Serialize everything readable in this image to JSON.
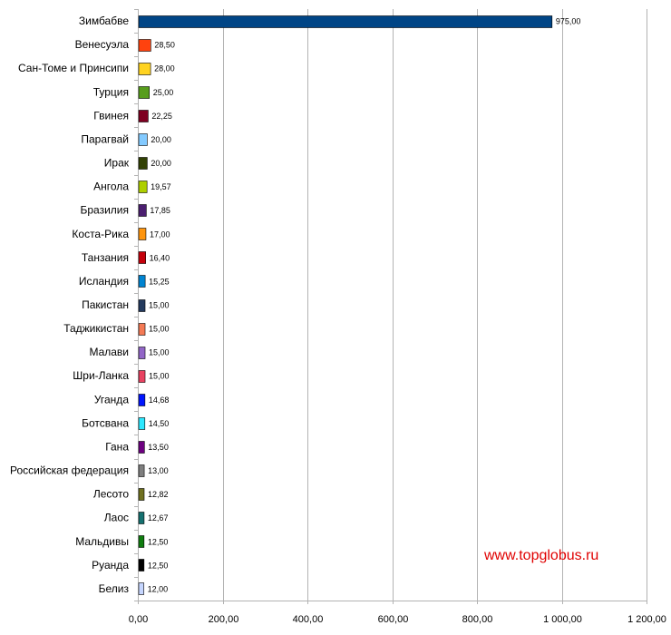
{
  "chart_data": {
    "type": "bar",
    "orientation": "horizontal",
    "categories": [
      "Зимбабве",
      "Венесуэла",
      "Сан-Томе и Принсипи",
      "Турция",
      "Гвинея",
      "Парагвай",
      "Ирак",
      "Ангола",
      "Бразилия",
      "Коста-Рика",
      "Танзания",
      "Исландия",
      "Пакистан",
      "Таджикистан",
      "Малави",
      "Шри-Ланка",
      "Уганда",
      "Ботсвана",
      "Гана",
      "Российская федерация",
      "Лесото",
      "Лаос",
      "Мальдивы",
      "Руанда",
      "Белиз"
    ],
    "values": [
      975,
      28.5,
      28,
      25,
      22.25,
      20,
      20,
      19.57,
      17.85,
      17,
      16.4,
      15.25,
      15,
      15,
      15,
      15,
      14.68,
      14.5,
      13.5,
      13,
      12.82,
      12.67,
      12.5,
      12.5,
      12
    ],
    "value_labels": [
      "975,00",
      "28,50",
      "28,00",
      "25,00",
      "22,25",
      "20,00",
      "20,00",
      "19,57",
      "17,85",
      "17,00",
      "16,40",
      "15,25",
      "15,00",
      "15,00",
      "15,00",
      "15,00",
      "14,68",
      "14,50",
      "13,50",
      "13,00",
      "12,82",
      "12,67",
      "12,50",
      "12,50",
      "12,00"
    ],
    "colors": [
      "#004586",
      "#ff420e",
      "#ffd320",
      "#579d1c",
      "#7e0021",
      "#83caff",
      "#314004",
      "#aecf00",
      "#4b1f6f",
      "#ff950e",
      "#c5000b",
      "#0084d1",
      "#233a5e",
      "#f47a55",
      "#9266c7",
      "#e84261",
      "#0015ff",
      "#2ee8ff",
      "#6d0080",
      "#7f7f7f",
      "#6f7020",
      "#157170",
      "#0f7d0f",
      "#000000",
      "#c6d6ff"
    ],
    "xlim": [
      0,
      1200
    ],
    "xticks": [
      0,
      200,
      400,
      600,
      800,
      1000,
      1200
    ],
    "xtick_labels": [
      "0,00",
      "200,00",
      "400,00",
      "600,00",
      "800,00",
      "1 000,00",
      "1 200,00"
    ],
    "grid": true,
    "title": "",
    "xlabel": "",
    "ylabel": ""
  },
  "watermark": "www.topglobus.ru"
}
